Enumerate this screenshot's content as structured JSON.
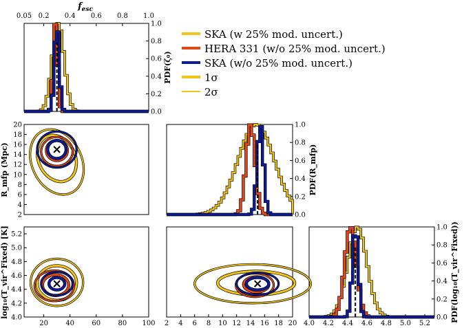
{
  "colors": {
    "ska_mod": "#f0c419",
    "hera": "#e0481a",
    "ska": "#0b1b9a",
    "edge": "#000000"
  },
  "legend": {
    "entries": [
      {
        "label": "SKA (w 25% mod. uncert.)",
        "color": "#f0c419"
      },
      {
        "label": "HERA 331 (w/o 25% mod. uncert.)",
        "color": "#e0481a"
      },
      {
        "label": "SKA (w/o 25% mod. uncert.)",
        "color": "#0b1b9a"
      },
      {
        "label": "1σ",
        "color": "#f0c419"
      },
      {
        "label": "2σ",
        "color": "#f0c419"
      }
    ]
  },
  "chart_data": [
    {
      "id": "pdf-fesc",
      "type": "histogram",
      "title": "f_esc",
      "ylabel": "PDF(ζ₀)",
      "xlim": [
        0.05,
        1.0
      ],
      "ylim": [
        0,
        1.0
      ],
      "xticks": [
        "0.05",
        "0.2",
        "0.4",
        "0.6",
        "0.8",
        "1.0"
      ],
      "yticks": [
        "0.0",
        "0.2",
        "0.4",
        "0.6",
        "0.8",
        "1.0"
      ],
      "truth": 0.3,
      "series": [
        {
          "name": "SKA (w 25% mod. uncert.)",
          "center": 0.31,
          "sigma": 0.045
        },
        {
          "name": "HERA 331 (w/o 25% mod. uncert.)",
          "center": 0.29,
          "sigma": 0.016
        },
        {
          "name": "SKA (w/o 25% mod. uncert.)",
          "center": 0.3,
          "sigma": 0.018
        }
      ]
    },
    {
      "id": "pdf-rmfp",
      "type": "histogram",
      "ylabel": "PDF(R_mfp)",
      "xlim": [
        2,
        20
      ],
      "ylim": [
        0,
        1.0
      ],
      "yticks": [
        "0.0",
        "0.2",
        "0.4",
        "0.6",
        "0.8",
        "1.0"
      ],
      "truth": 15,
      "series": [
        {
          "name": "SKA (w 25% mod. uncert.)",
          "center": 14.8,
          "sigma": 2.6
        },
        {
          "name": "HERA 331 (w/o 25% mod. uncert.)",
          "center": 14.0,
          "sigma": 0.65
        },
        {
          "name": "SKA (w/o 25% mod. uncert.)",
          "center": 15.4,
          "sigma": 0.45
        }
      ]
    },
    {
      "id": "pdf-tvir",
      "type": "histogram",
      "ylabel": "PDF(log₁₀(T_vir^Fixed))",
      "xlim": [
        4.0,
        5.3
      ],
      "ylim": [
        0,
        1.0
      ],
      "xticks": [
        "4.0",
        "4.2",
        "4.4",
        "4.6",
        "4.8",
        "5.0",
        "5.2"
      ],
      "yticks": [
        "0.0",
        "0.2",
        "0.4",
        "0.6",
        "0.8",
        "1.0"
      ],
      "truth": 4.48,
      "series": [
        {
          "name": "SKA (w 25% mod. uncert.)",
          "center": 4.5,
          "sigma": 0.1
        },
        {
          "name": "HERA 331 (w/o 25% mod. uncert.)",
          "center": 4.43,
          "sigma": 0.06
        },
        {
          "name": "SKA (w/o 25% mod. uncert.)",
          "center": 4.48,
          "sigma": 0.03
        }
      ]
    },
    {
      "id": "contour-rmfp-fesc",
      "type": "contour",
      "ylabel": "R_mfp (Mpc)",
      "xlim": [
        5,
        100
      ],
      "ylim": [
        2,
        20
      ],
      "yticks": [
        "2",
        "4",
        "6",
        "8",
        "10",
        "12",
        "14",
        "16",
        "18",
        "20"
      ],
      "marker": [
        30,
        15
      ],
      "ellipses": [
        {
          "series": "SKA (w 25% mod. uncert.)",
          "sigma": 2,
          "cx": 30,
          "cy": 12.5,
          "rx": 19,
          "ry": 6.8,
          "angle": -25
        },
        {
          "series": "SKA (w 25% mod. uncert.)",
          "sigma": 1,
          "cx": 30,
          "cy": 13.2,
          "rx": 14,
          "ry": 4.8,
          "angle": -25
        },
        {
          "series": "HERA 331 (w/o 25% mod. uncert.)",
          "sigma": 2,
          "cx": 30,
          "cy": 14.6,
          "rx": 12,
          "ry": 2.9,
          "angle": 0
        },
        {
          "series": "HERA 331 (w/o 25% mod. uncert.)",
          "sigma": 1,
          "cx": 30,
          "cy": 14.8,
          "rx": 8,
          "ry": 2.0,
          "angle": 0
        },
        {
          "series": "SKA (w/o 25% mod. uncert.)",
          "sigma": 2,
          "cx": 30,
          "cy": 15.0,
          "rx": 15,
          "ry": 3.6,
          "angle": 0
        },
        {
          "series": "SKA (w/o 25% mod. uncert.)",
          "sigma": 1,
          "cx": 30,
          "cy": 15.0,
          "rx": 7,
          "ry": 1.8,
          "angle": 0
        }
      ]
    },
    {
      "id": "contour-tvir-fesc",
      "type": "contour",
      "ylabel": "log₁₀(T_vir^Fixed) [K]",
      "xlim": [
        5,
        100
      ],
      "ylim": [
        4.0,
        5.3
      ],
      "xticks": [
        "20",
        "40",
        "60",
        "80",
        "100"
      ],
      "yticks": [
        "4.0",
        "4.2",
        "4.4",
        "4.6",
        "4.8",
        "5.0",
        "5.2"
      ],
      "marker": [
        30,
        4.48
      ],
      "ellipses": [
        {
          "series": "SKA (w 25% mod. uncert.)",
          "sigma": 2,
          "cx": 30,
          "cy": 4.5,
          "rx": 20,
          "ry": 0.34,
          "angle": 0
        },
        {
          "series": "SKA (w 25% mod. uncert.)",
          "sigma": 1,
          "cx": 30,
          "cy": 4.49,
          "rx": 15,
          "ry": 0.25,
          "angle": 0
        },
        {
          "series": "HERA 331 (w/o 25% mod. uncert.)",
          "sigma": 2,
          "cx": 28,
          "cy": 4.45,
          "rx": 15,
          "ry": 0.22,
          "angle": 0
        },
        {
          "series": "HERA 331 (w/o 25% mod. uncert.)",
          "sigma": 1,
          "cx": 29,
          "cy": 4.46,
          "rx": 10,
          "ry": 0.15,
          "angle": 0
        },
        {
          "series": "SKA (w/o 25% mod. uncert.)",
          "sigma": 2,
          "cx": 30,
          "cy": 4.48,
          "rx": 12,
          "ry": 0.17,
          "angle": 0
        },
        {
          "series": "SKA (w/o 25% mod. uncert.)",
          "sigma": 1,
          "cx": 30,
          "cy": 4.48,
          "rx": 6,
          "ry": 0.09,
          "angle": 0
        }
      ]
    },
    {
      "id": "contour-tvir-rmfp",
      "type": "contour",
      "xlim": [
        2,
        20
      ],
      "ylim": [
        4.0,
        5.3
      ],
      "xticks": [
        "2",
        "4",
        "6",
        "8",
        "10",
        "12",
        "14",
        "16",
        "18",
        "20"
      ],
      "marker": [
        15,
        4.48
      ],
      "ellipses": [
        {
          "series": "SKA (w 25% mod. uncert.)",
          "sigma": 2,
          "cx": 14.3,
          "cy": 4.48,
          "rx": 8.3,
          "ry": 0.28,
          "angle": 0
        },
        {
          "series": "SKA (w 25% mod. uncert.)",
          "sigma": 1,
          "cx": 14.8,
          "cy": 4.49,
          "rx": 5.5,
          "ry": 0.17,
          "angle": 0
        },
        {
          "series": "HERA 331 (w/o 25% mod. uncert.)",
          "sigma": 2,
          "cx": 14.6,
          "cy": 4.46,
          "rx": 2.7,
          "ry": 0.17,
          "angle": 0
        },
        {
          "series": "HERA 331 (w/o 25% mod. uncert.)",
          "sigma": 1,
          "cx": 14.8,
          "cy": 4.47,
          "rx": 1.8,
          "ry": 0.11,
          "angle": 0
        },
        {
          "series": "SKA (w/o 25% mod. uncert.)",
          "sigma": 2,
          "cx": 15.0,
          "cy": 4.48,
          "rx": 3.0,
          "ry": 0.16,
          "angle": 0
        },
        {
          "series": "SKA (w/o 25% mod. uncert.)",
          "sigma": 1,
          "cx": 15.0,
          "cy": 4.48,
          "rx": 1.6,
          "ry": 0.09,
          "angle": 0
        }
      ]
    }
  ]
}
